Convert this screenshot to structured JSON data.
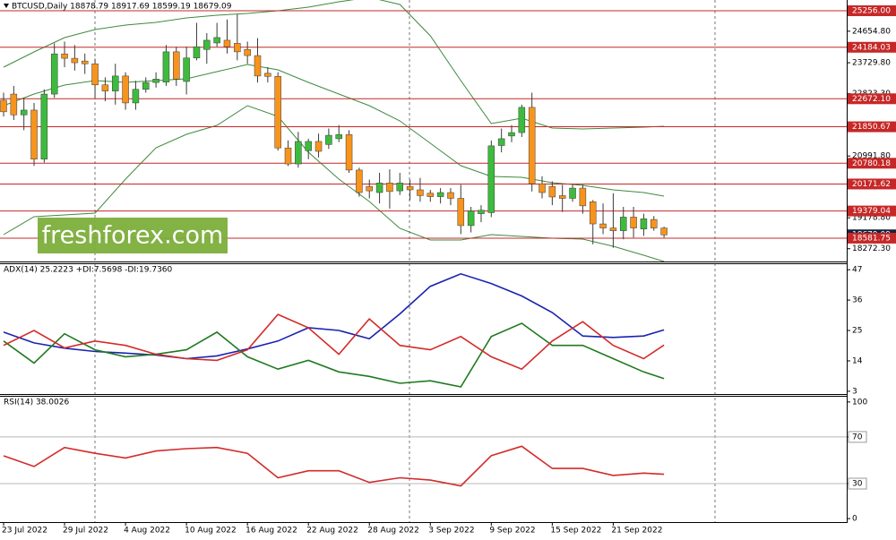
{
  "chart_data": [
    {
      "type": "candlestick",
      "title": "BTCUSD,Daily  18878.79 18917.69 18599.19 18679.09",
      "watermark": "freshforex.com",
      "x": [
        "23 Jul 2022",
        "24 Jul 2022",
        "25 Jul 2022",
        "26 Jul 2022",
        "27 Jul 2022",
        "28 Jul 2022",
        "29 Jul 2022",
        "30 Jul 2022",
        "31 Jul 2022",
        "1 Aug 2022",
        "2 Aug 2022",
        "3 Aug 2022",
        "4 Aug 2022",
        "5 Aug 2022",
        "6 Aug 2022",
        "7 Aug 2022",
        "8 Aug 2022",
        "9 Aug 2022",
        "10 Aug 2022",
        "11 Aug 2022",
        "12 Aug 2022",
        "13 Aug 2022",
        "14 Aug 2022",
        "15 Aug 2022",
        "16 Aug 2022",
        "17 Aug 2022",
        "18 Aug 2022",
        "19 Aug 2022",
        "20 Aug 2022",
        "21 Aug 2022",
        "22 Aug 2022",
        "23 Aug 2022",
        "24 Aug 2022",
        "25 Aug 2022",
        "26 Aug 2022",
        "27 Aug 2022",
        "28 Aug 2022",
        "29 Aug 2022",
        "30 Aug 2022",
        "31 Aug 2022",
        "1 Sep 2022",
        "2 Sep 2022",
        "3 Sep 2022",
        "4 Sep 2022",
        "5 Sep 2022",
        "6 Sep 2022",
        "7 Sep 2022",
        "8 Sep 2022",
        "9 Sep 2022",
        "10 Sep 2022",
        "11 Sep 2022",
        "12 Sep 2022",
        "13 Sep 2022",
        "14 Sep 2022",
        "15 Sep 2022",
        "16 Sep 2022",
        "17 Sep 2022",
        "18 Sep 2022",
        "19 Sep 2022",
        "20 Sep 2022",
        "21 Sep 2022",
        "22 Sep 2022",
        "23 Sep 2022",
        "24 Sep 2022",
        "25 Sep 2022",
        "26 Sep 2022"
      ],
      "xticks": [
        "23 Jul 2022",
        "29 Jul 2022",
        "4 Aug 2022",
        "10 Aug 2022",
        "16 Aug 2022",
        "22 Aug 2022",
        "28 Aug 2022",
        "3 Sep 2022",
        "9 Sep 2022",
        "15 Sep 2022",
        "21 Sep 2022"
      ],
      "open": [
        22630,
        22810,
        22200,
        22340,
        20900,
        22810,
        23990,
        23860,
        23780,
        23700,
        23080,
        22900,
        23340,
        22550,
        22950,
        23150,
        23160,
        24050,
        23180,
        23870,
        24120,
        24310,
        24390,
        24300,
        24120,
        23940,
        23420,
        23330,
        21230,
        20760,
        21150,
        21420,
        21330,
        21500,
        21620,
        20580,
        20100,
        19920,
        20200,
        19970,
        20100,
        20000,
        19900,
        19800,
        19920,
        19750,
        18950,
        19300,
        19330,
        21300,
        21580,
        21680,
        22420,
        20180,
        20100,
        19830,
        19750,
        20050,
        19650,
        19000,
        18880,
        18800,
        19200,
        18850,
        19130,
        18878.79
      ],
      "high": [
        22850,
        23050,
        22700,
        22550,
        22950,
        24300,
        24350,
        24250,
        24000,
        23850,
        23300,
        23700,
        23450,
        23200,
        23300,
        23450,
        24250,
        24200,
        24200,
        24900,
        24600,
        24900,
        25000,
        25150,
        24350,
        24450,
        23600,
        23450,
        21450,
        21700,
        21500,
        21650,
        21800,
        21900,
        21750,
        20650,
        20300,
        20500,
        20600,
        20500,
        20300,
        20350,
        20000,
        20050,
        20050,
        20150,
        19500,
        19550,
        21450,
        21800,
        21900,
        22500,
        22850,
        20400,
        20250,
        20150,
        20150,
        20150,
        19700,
        19600,
        19900,
        19500,
        19500,
        19300,
        19230,
        18917.69
      ],
      "low": [
        22150,
        22050,
        21750,
        20700,
        20800,
        22700,
        23600,
        23500,
        23400,
        22700,
        22600,
        22500,
        22350,
        22350,
        22850,
        23000,
        23050,
        23050,
        22800,
        23800,
        23700,
        24200,
        24000,
        23800,
        23700,
        23150,
        23150,
        21150,
        20700,
        20650,
        20900,
        20950,
        21200,
        21400,
        20500,
        19800,
        19750,
        19600,
        19450,
        19850,
        19700,
        19650,
        19650,
        19600,
        19550,
        18700,
        18750,
        19050,
        19200,
        21100,
        21400,
        21550,
        19950,
        19750,
        19550,
        19350,
        19650,
        19300,
        18400,
        18700,
        18300,
        18550,
        18600,
        18650,
        18800,
        18599.19
      ],
      "close": [
        22290,
        22200,
        22340,
        20900,
        22810,
        23990,
        23860,
        23730,
        23700,
        23080,
        22900,
        23340,
        22550,
        22950,
        23150,
        23250,
        24050,
        23250,
        23870,
        24200,
        24390,
        24470,
        24200,
        24050,
        23940,
        23340,
        23330,
        21230,
        20760,
        21420,
        21420,
        21130,
        21600,
        21620,
        20580,
        19920,
        19970,
        20200,
        19950,
        20200,
        20000,
        19830,
        19800,
        19920,
        19750,
        18950,
        19380,
        19400,
        21290,
        21500,
        21680,
        22420,
        20180,
        19920,
        19790,
        19750,
        20050,
        19530,
        19000,
        18880,
        18800,
        19200,
        18880,
        19150,
        18880,
        18679.09
      ],
      "up_color": "#3dbb3d",
      "down_color": "#f7941d",
      "wick_color": "#3a3a3a",
      "ylim": [
        17897,
        25571
      ],
      "yticks": [
        {
          "value": 24654.8,
          "label": "24654.80"
        },
        {
          "value": 23729.8,
          "label": "23729.80"
        },
        {
          "value": 22823.3,
          "label": "22823.30"
        },
        {
          "value": 20991.8,
          "label": "20991.80"
        },
        {
          "value": 19178.8,
          "label": "19178.80"
        },
        {
          "value": 18272.3,
          "label": "18272.30"
        }
      ],
      "levels": [
        {
          "value": 25256,
          "label": "25256.00"
        },
        24184.03,
        {
          "value": 22672.1,
          "label": "22672.10"
        },
        21850.67,
        20780.18,
        20171.62,
        19379.04,
        18581.75
      ],
      "level_color": "#c62828",
      "series": [
        {
          "color": "#3f8a3f",
          "x": [
            "23 Jul 2022",
            "26 Jul 2022",
            "29 Jul 2022",
            "1 Aug 2022",
            "4 Aug 2022",
            "7 Aug 2022",
            "10 Aug 2022",
            "13 Aug 2022",
            "16 Aug 2022",
            "19 Aug 2022",
            "22 Aug 2022",
            "25 Aug 2022",
            "28 Aug 2022",
            "31 Aug 2022",
            "3 Sep 2022",
            "6 Sep 2022",
            "9 Sep 2022",
            "12 Sep 2022",
            "15 Sep 2022",
            "18 Sep 2022",
            "21 Sep 2022",
            "24 Sep 2022",
            "26 Sep 2022"
          ],
          "values": [
            23600,
            24047,
            24467,
            24704,
            24835,
            24914,
            25045,
            25124,
            25177,
            25256,
            25361,
            25518,
            25650,
            25440,
            24520,
            23206,
            21944,
            22102,
            21813,
            21787,
            21813,
            21839,
            21866
          ]
        },
        {
          "color": "#3f8a3f",
          "x": [
            "23 Jul 2022",
            "26 Jul 2022",
            "29 Jul 2022",
            "1 Aug 2022",
            "4 Aug 2022",
            "7 Aug 2022",
            "10 Aug 2022",
            "13 Aug 2022",
            "16 Aug 2022",
            "19 Aug 2022",
            "22 Aug 2022",
            "25 Aug 2022",
            "28 Aug 2022",
            "31 Aug 2022",
            "3 Sep 2022",
            "6 Sep 2022",
            "9 Sep 2022",
            "12 Sep 2022",
            "15 Sep 2022",
            "18 Sep 2022",
            "21 Sep 2022",
            "24 Sep 2022",
            "26 Sep 2022"
          ],
          "values": [
            22470,
            22812,
            23074,
            23206,
            23153,
            23206,
            23258,
            23469,
            23679,
            23521,
            23153,
            22812,
            22470,
            22023,
            21366,
            20709,
            20394,
            20368,
            20210,
            20131,
            20000,
            19921,
            19816
          ]
        },
        {
          "color": "#3f8a3f",
          "x": [
            "23 Jul 2022",
            "26 Jul 2022",
            "29 Jul 2022",
            "1 Aug 2022",
            "4 Aug 2022",
            "7 Aug 2022",
            "10 Aug 2022",
            "13 Aug 2022",
            "16 Aug 2022",
            "19 Aug 2022",
            "22 Aug 2022",
            "25 Aug 2022",
            "28 Aug 2022",
            "31 Aug 2022",
            "3 Sep 2022",
            "6 Sep 2022",
            "9 Sep 2022",
            "12 Sep 2022",
            "15 Sep 2022",
            "18 Sep 2022",
            "21 Sep 2022",
            "24 Sep 2022",
            "26 Sep 2022"
          ],
          "values": [
            18686,
            19211,
            19264,
            19316,
            20315,
            21235,
            21629,
            21892,
            22470,
            22155,
            21103,
            20315,
            19659,
            18870,
            18528,
            18528,
            18686,
            18633,
            18581,
            18554,
            18344,
            18081,
            17897
          ]
        }
      ]
    },
    {
      "type": "line",
      "title": "ADX(14) 25.2223 +DI:7.5698 -DI:19.7360",
      "x": [
        "23 Jul 2022",
        "26 Jul 2022",
        "29 Jul 2022",
        "1 Aug 2022",
        "4 Aug 2022",
        "7 Aug 2022",
        "10 Aug 2022",
        "13 Aug 2022",
        "16 Aug 2022",
        "19 Aug 2022",
        "22 Aug 2022",
        "25 Aug 2022",
        "28 Aug 2022",
        "31 Aug 2022",
        "3 Sep 2022",
        "6 Sep 2022",
        "9 Sep 2022",
        "12 Sep 2022",
        "15 Sep 2022",
        "18 Sep 2022",
        "21 Sep 2022",
        "24 Sep 2022",
        "26 Sep 2022"
      ],
      "ylim": [
        2,
        49
      ],
      "yticks": [
        3,
        14,
        25,
        36,
        47
      ],
      "series": [
        {
          "color": "#1a23b0",
          "values": [
            24.4,
            20.5,
            18.6,
            17.4,
            16.8,
            16.1,
            14.8,
            15.8,
            18.3,
            21.2,
            26.0,
            25.0,
            22.0,
            31.0,
            41.0,
            45.5,
            42.0,
            37.5,
            31.5,
            23.0,
            22.5,
            23.0,
            25.2223
          ]
        },
        {
          "color": "#1f7a1f",
          "values": [
            21.2,
            13.2,
            23.8,
            18.0,
            15.5,
            16.4,
            18.0,
            24.4,
            15.5,
            11.0,
            14.2,
            10.0,
            8.4,
            5.9,
            6.8,
            4.6,
            22.8,
            27.6,
            19.6,
            19.6,
            14.8,
            10.0,
            7.5698
          ]
        },
        {
          "color": "#d42a2a",
          "values": [
            19.6,
            25.0,
            18.7,
            21.2,
            19.6,
            16.4,
            14.8,
            14.2,
            18.0,
            30.8,
            26.0,
            16.4,
            29.2,
            19.6,
            18.0,
            22.8,
            15.5,
            11.0,
            21.2,
            28.2,
            19.6,
            14.8,
            19.736
          ]
        }
      ]
    },
    {
      "type": "line",
      "title": "RSI(14) 38.0026",
      "x": [
        "23 Jul 2022",
        "26 Jul 2022",
        "29 Jul 2022",
        "1 Aug 2022",
        "4 Aug 2022",
        "7 Aug 2022",
        "10 Aug 2022",
        "13 Aug 2022",
        "16 Aug 2022",
        "19 Aug 2022",
        "22 Aug 2022",
        "25 Aug 2022",
        "28 Aug 2022",
        "31 Aug 2022",
        "3 Sep 2022",
        "6 Sep 2022",
        "9 Sep 2022",
        "12 Sep 2022",
        "15 Sep 2022",
        "18 Sep 2022",
        "21 Sep 2022",
        "24 Sep 2022",
        "26 Sep 2022"
      ],
      "ylim": [
        -3,
        104.5
      ],
      "yticks": [
        0,
        30,
        70,
        100
      ],
      "levels": [
        30,
        70
      ],
      "level_color": "#b8b8b8",
      "series": [
        {
          "color": "#d42a2a",
          "values": [
            53.8,
            44.7,
            61,
            56,
            52,
            58,
            60,
            61,
            56,
            35,
            41,
            41,
            31,
            35,
            33,
            28,
            54,
            62,
            43,
            43,
            37,
            39,
            38.0026
          ]
        }
      ]
    }
  ]
}
